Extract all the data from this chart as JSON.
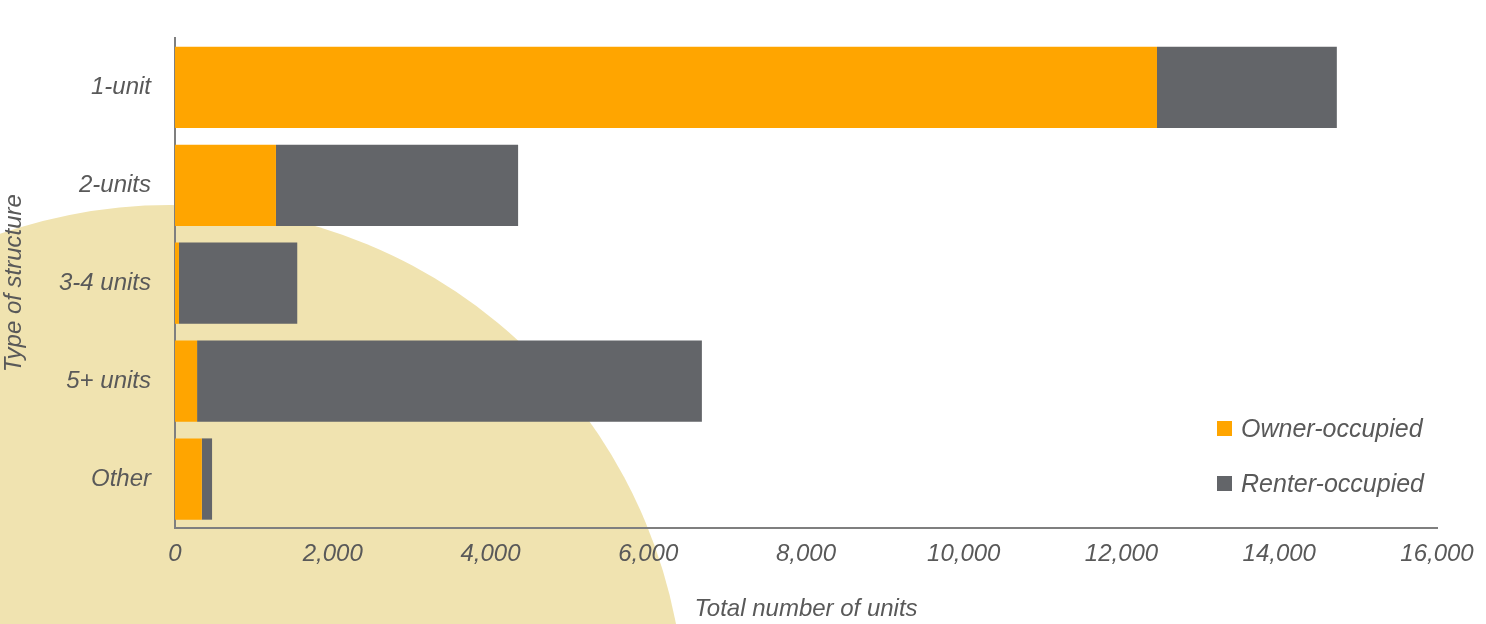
{
  "chart_data": {
    "type": "bar",
    "orientation": "horizontal",
    "stacked": true,
    "xlabel": "Total number of units",
    "ylabel": "Type of structure",
    "categories": [
      "1-unit",
      "2-units",
      "3-4 units",
      "5+ units",
      "Other"
    ],
    "series": [
      {
        "name": "Owner-occupied",
        "color": "#ffa500",
        "values": [
          12450,
          1280,
          50,
          280,
          340
        ]
      },
      {
        "name": "Renter-occupied",
        "color": "#636569",
        "values": [
          2280,
          3070,
          1500,
          6400,
          130
        ]
      }
    ],
    "xlim": [
      0,
      16000
    ],
    "xticks": [
      {
        "value": 0,
        "label": "0"
      },
      {
        "value": 2000,
        "label": "2,000"
      },
      {
        "value": 4000,
        "label": "4,000"
      },
      {
        "value": 6000,
        "label": "6,000"
      },
      {
        "value": 8000,
        "label": "8,000"
      },
      {
        "value": 10000,
        "label": "10,000"
      },
      {
        "value": 12000,
        "label": "12,000"
      },
      {
        "value": 14000,
        "label": "14,000"
      },
      {
        "value": 16000,
        "label": "16,000"
      }
    ],
    "grid": false,
    "legend": "bottom right"
  }
}
